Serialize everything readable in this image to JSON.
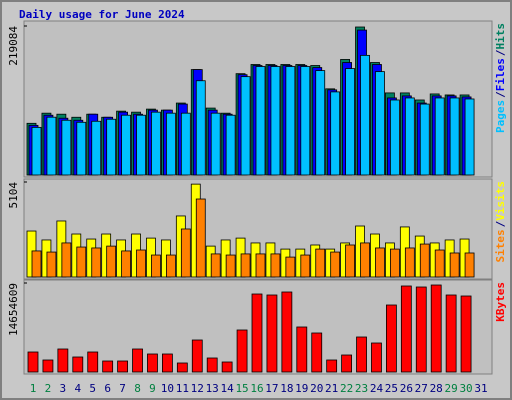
{
  "title": "Daily usage for June 2024",
  "legend_separator": "/",
  "chart_data": [
    {
      "type": "bar",
      "ylim": [
        0,
        219084
      ],
      "yticks": [
        219084
      ],
      "series": [
        {
          "name": "Hits",
          "color": "#008060",
          "values": [
            76000,
            90900,
            89400,
            84900,
            89400,
            84900,
            93900,
            92400,
            96900,
            95400,
            105800,
            155000,
            98400,
            90900,
            149000,
            162500,
            162500,
            162500,
            162500,
            161000,
            126700,
            169900,
            217600,
            165400,
            120700,
            120700,
            110300,
            119200,
            117700,
            117700,
            0
          ]
        },
        {
          "name": "Files",
          "color": "#0000ff",
          "values": [
            73000,
            87900,
            83500,
            80500,
            89400,
            84900,
            92400,
            89400,
            95400,
            95400,
            104300,
            155000,
            95400,
            89400,
            147500,
            161000,
            161000,
            161000,
            161000,
            158000,
            125200,
            165400,
            213100,
            162500,
            113300,
            116300,
            105800,
            116300,
            116300,
            114800,
            0
          ]
        },
        {
          "name": "Pages",
          "color": "#00c0ff",
          "values": [
            70000,
            85000,
            80500,
            77500,
            79000,
            82000,
            87900,
            87900,
            92400,
            90900,
            90900,
            138600,
            90900,
            87900,
            144600,
            159500,
            159500,
            159500,
            159500,
            153500,
            122200,
            156500,
            175900,
            152000,
            110300,
            113300,
            104300,
            113300,
            113300,
            111800,
            0
          ]
        }
      ]
    },
    {
      "type": "bar",
      "ylim": [
        0,
        5104
      ],
      "yticks": [
        5104
      ],
      "series": [
        {
          "name": "Visits",
          "color": "#ffff00",
          "values": [
            2470,
            1990,
            3010,
            2310,
            2040,
            2310,
            1990,
            2310,
            2090,
            1990,
            3280,
            4990,
            1660,
            1990,
            2090,
            1830,
            1830,
            1500,
            1500,
            1720,
            1500,
            1830,
            2740,
            2310,
            1830,
            2690,
            2200,
            1830,
            1990,
            2040,
            0
          ]
        },
        {
          "name": "Sites",
          "color": "#ff8000",
          "values": [
            1400,
            1340,
            1830,
            1610,
            1560,
            1660,
            1400,
            1450,
            1180,
            1180,
            2580,
            4190,
            1240,
            1180,
            1240,
            1240,
            1240,
            1070,
            1180,
            1500,
            1340,
            1720,
            1830,
            1560,
            1500,
            1560,
            1770,
            1450,
            1290,
            1290,
            0
          ]
        }
      ]
    },
    {
      "type": "bar",
      "ylim": [
        0,
        14654609
      ],
      "yticks": [
        14654609
      ],
      "categories": [
        "1",
        "2",
        "3",
        "4",
        "5",
        "6",
        "7",
        "8",
        "9",
        "10",
        "11",
        "12",
        "13",
        "14",
        "15",
        "16",
        "17",
        "18",
        "19",
        "20",
        "21",
        "22",
        "23",
        "24",
        "25",
        "26",
        "27",
        "28",
        "29",
        "30",
        "31"
      ],
      "category_colors": [
        "#008040",
        "#008040",
        "#000080",
        "#000080",
        "#000080",
        "#000080",
        "#000080",
        "#008040",
        "#008040",
        "#000080",
        "#000080",
        "#000080",
        "#000080",
        "#000080",
        "#008040",
        "#008040",
        "#000080",
        "#000080",
        "#000080",
        "#000080",
        "#000080",
        "#008040",
        "#008040",
        "#000080",
        "#000080",
        "#000080",
        "#000080",
        "#000080",
        "#008040",
        "#008040",
        "#000080"
      ],
      "series": [
        {
          "name": "KBytes",
          "color": "#ff0000",
          "values": [
            3293000,
            1976000,
            3787000,
            2470000,
            3293000,
            1811000,
            1811000,
            3787000,
            2964000,
            2964000,
            1482000,
            5269000,
            2305000,
            1647000,
            6916000,
            12843000,
            12679000,
            13173000,
            7410000,
            6422000,
            1976000,
            2799000,
            5763000,
            4775000,
            11032000,
            14161000,
            13996000,
            14325000,
            12679000,
            12514000,
            0
          ]
        }
      ]
    }
  ]
}
